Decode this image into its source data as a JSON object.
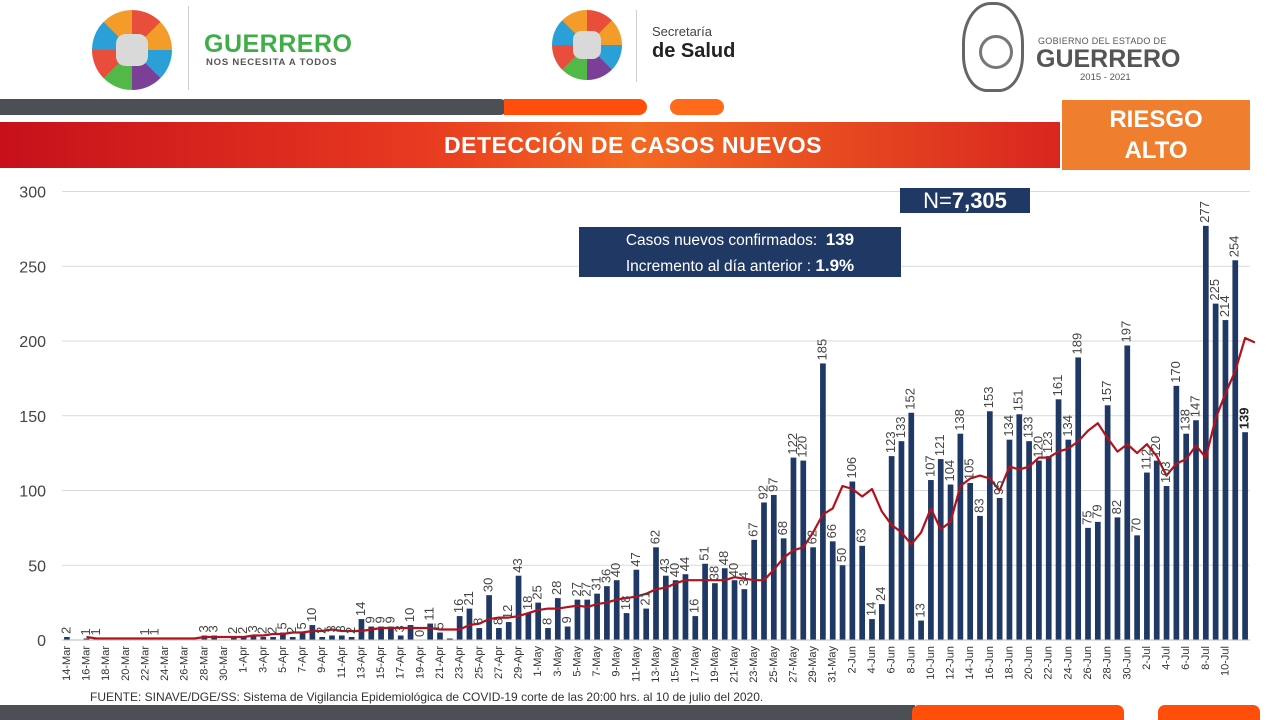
{
  "header": {
    "guerrero_logo_text": "GUERRERO",
    "guerrero_logo_sub": "NOS NECESITA A TODOS",
    "salud_line1": "Secretaría",
    "salud_line2": "de Salud",
    "gobierno_line1": "GOBIERNO DEL ESTADO DE",
    "gobierno_line2": "GUERRERO",
    "gobierno_years": "2015 - 2021"
  },
  "title": "DETECCIÓN DE CASOS NUEVOS",
  "risk": {
    "line1": "RIESGO",
    "line2": "ALTO"
  },
  "total": {
    "prefix": "N=",
    "value": "7,305"
  },
  "info": {
    "line1_label": "Casos nuevos confirmados:",
    "line1_value": "139",
    "line2_label": "Incremento al día anterior :",
    "line2_value": "1.9%"
  },
  "source": "FUENTE: SINAVE/DGE/SS: Sistema de Vigilancia Epidemiológica de COVID-19 corte de las 20:00 hrs. al 10 de julio del 2020.",
  "colors": {
    "bar": "#1f3864",
    "line": "#b3121d",
    "grid": "#d9d9d9"
  },
  "chart_data": {
    "type": "bar",
    "ylim": [
      0,
      300
    ],
    "yticks": [
      0,
      50,
      100,
      150,
      200,
      250,
      300
    ],
    "grid": true,
    "x_tick_labels": [
      "14-Mar",
      "16-Mar",
      "18-Mar",
      "20-Mar",
      "22-Mar",
      "24-Mar",
      "26-Mar",
      "28-Mar",
      "30-Mar",
      "1-Apr",
      "3-Apr",
      "5-Apr",
      "7-Apr",
      "9-Apr",
      "11-Apr",
      "13-Apr",
      "15-Apr",
      "17-Apr",
      "19-Apr",
      "21-Apr",
      "23-Apr",
      "25-Apr",
      "27-Apr",
      "29-Apr",
      "1-May",
      "3-May",
      "5-May",
      "7-May",
      "9-May",
      "11-May",
      "13-May",
      "15-May",
      "17-May",
      "19-May",
      "21-May",
      "23-May",
      "25-May",
      "27-May",
      "29-May",
      "31-May",
      "2-Jun",
      "4-Jun",
      "6-Jun",
      "8-Jun",
      "10-Jun",
      "12-Jun",
      "14-Jun",
      "16-Jun",
      "18-Jun",
      "20-Jun",
      "22-Jun",
      "24-Jun",
      "26-Jun",
      "28-Jun",
      "30-Jun",
      "2-Jul",
      "4-Jul",
      "6-Jul",
      "8-Jul",
      "10-Jul"
    ],
    "values": [
      2,
      0,
      1,
      1,
      0,
      0,
      0,
      0,
      1,
      1,
      0,
      0,
      0,
      0,
      3,
      3,
      0,
      2,
      2,
      3,
      2,
      2,
      5,
      2,
      5,
      10,
      2,
      3,
      3,
      2,
      14,
      9,
      9,
      9,
      3,
      10,
      0,
      11,
      5,
      1,
      16,
      21,
      8,
      30,
      8,
      12,
      43,
      18,
      25,
      8,
      28,
      9,
      27,
      27,
      31,
      36,
      40,
      18,
      47,
      21,
      62,
      43,
      40,
      44,
      16,
      51,
      38,
      48,
      40,
      34,
      67,
      92,
      97,
      68,
      122,
      120,
      62,
      185,
      66,
      50,
      106,
      63,
      14,
      24,
      123,
      133,
      152,
      13,
      107,
      121,
      104,
      138,
      105,
      83,
      153,
      95,
      134,
      151,
      133,
      120,
      123,
      161,
      134,
      189,
      75,
      79,
      157,
      82,
      197,
      70,
      112,
      120,
      103,
      170,
      138,
      147,
      277,
      225,
      214,
      254,
      139
    ],
    "value_labels": [
      "2",
      "",
      "1",
      "1",
      "",
      "",
      "",
      "",
      "1",
      "1",
      "",
      "",
      "",
      "",
      "3",
      "3",
      "",
      "2",
      "2",
      "3",
      "2",
      "2",
      "5",
      "2",
      "5",
      "10",
      "2",
      "3",
      "3",
      "2",
      "14",
      "9",
      "9",
      "9",
      "3",
      "10",
      "0",
      "11",
      "5",
      "",
      "16",
      "21",
      "8",
      "30",
      "8",
      "12",
      "43",
      "18",
      "25",
      "8",
      "28",
      "9",
      "27",
      "27",
      "31",
      "36",
      "40",
      "18",
      "47",
      "21",
      "62",
      "43",
      "40",
      "44",
      "16",
      "51",
      "38",
      "48",
      "40",
      "34",
      "67",
      "92",
      "97",
      "68",
      "122",
      "120",
      "62",
      "185",
      "66",
      "50",
      "106",
      "63",
      "14",
      "24",
      "123",
      "133",
      "152",
      "13",
      "107",
      "121",
      "104",
      "138",
      "105",
      "83",
      "153",
      "95",
      "134",
      "151",
      "133",
      "120",
      "123",
      "161",
      "134",
      "189",
      "75",
      "79",
      "157",
      "82",
      "197",
      "70",
      "112",
      "120",
      "103",
      "170",
      "138",
      "147",
      "277",
      "225",
      "214",
      "254",
      "139"
    ],
    "moving_average_start_index": 2,
    "moving_average": [
      2,
      1,
      1,
      1,
      1,
      1,
      1,
      1,
      1,
      1,
      1,
      1,
      2,
      2,
      2,
      2,
      2,
      3,
      3,
      4,
      4,
      5,
      5,
      6,
      6,
      7,
      6,
      6,
      6,
      7,
      8,
      8,
      8,
      8,
      8,
      8,
      7,
      7,
      7,
      10,
      11,
      14,
      15,
      15,
      16,
      18,
      20,
      21,
      21,
      22,
      23,
      22,
      24,
      25,
      27,
      28,
      29,
      31,
      34,
      35,
      38,
      40,
      40,
      40,
      40,
      40,
      42,
      41,
      40,
      40,
      47,
      55,
      60,
      62,
      72,
      84,
      88,
      103,
      101,
      96,
      101,
      86,
      77,
      72,
      64,
      72,
      88,
      74,
      79,
      103,
      108,
      110,
      108,
      100,
      116,
      114,
      116,
      122,
      122,
      126,
      128,
      133,
      140,
      145,
      135,
      126,
      131,
      125,
      131,
      123,
      110,
      118,
      121,
      130,
      122,
      148,
      165,
      180,
      202,
      199
    ]
  }
}
